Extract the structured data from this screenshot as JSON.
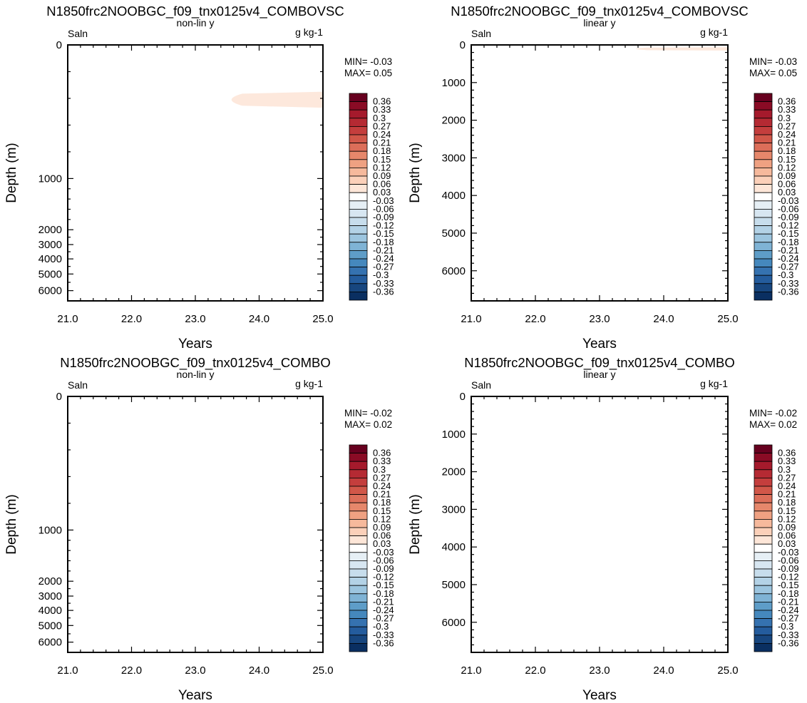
{
  "chart_data": [
    {
      "type": "heatmap",
      "title": "N1850frc2NOOBGC_f09_tnx0125v4_COMBOVSC",
      "left_label": "Saln",
      "center_label": "non-lin y",
      "right_label": "g kg-1",
      "xlabel": "Years",
      "ylabel": "Depth (m)",
      "y_scale": "non-linear",
      "xlim": [
        21.0,
        25.0
      ],
      "ylim": [
        0,
        6500
      ],
      "x_ticks": [
        21.0,
        22.0,
        23.0,
        24.0,
        25.0
      ],
      "x_tick_labels": [
        "21.0",
        "22.0",
        "23.0",
        "24.0",
        "25.0"
      ],
      "y_ticks": [
        0,
        1000,
        2000,
        3000,
        4000,
        5000,
        6000
      ],
      "y_tick_labels": [
        "0",
        "1000",
        "2000",
        "3000",
        "4000",
        "5000",
        "6000"
      ],
      "min_label": "MIN= -0.03",
      "max_label": "MAX=  0.05",
      "shaded_regions": [
        {
          "level_range": [
            0.03,
            0.06
          ],
          "color": "#fde8dc",
          "x_start": 23.4,
          "x_end": 25.0,
          "depth_top": 350,
          "depth_bottom": 470
        }
      ]
    },
    {
      "type": "heatmap",
      "title": "N1850frc2NOOBGC_f09_tnx0125v4_COMBOVSC",
      "left_label": "Saln",
      "center_label": "linear y",
      "right_label": "g kg-1",
      "xlabel": "Years",
      "ylabel": "Depth (m)",
      "y_scale": "linear",
      "xlim": [
        21.0,
        25.0
      ],
      "ylim": [
        0,
        6800
      ],
      "x_ticks": [
        21.0,
        22.0,
        23.0,
        24.0,
        25.0
      ],
      "x_tick_labels": [
        "21.0",
        "22.0",
        "23.0",
        "24.0",
        "25.0"
      ],
      "y_ticks": [
        0,
        1000,
        2000,
        3000,
        4000,
        5000,
        6000
      ],
      "y_tick_labels": [
        "0",
        "1000",
        "2000",
        "3000",
        "4000",
        "5000",
        "6000"
      ],
      "min_label": "MIN= -0.03",
      "max_label": "MAX=  0.05",
      "shaded_regions": [
        {
          "level_range": [
            0.03,
            0.06
          ],
          "color": "#fde8dc",
          "x_start": 23.4,
          "x_end": 25.0,
          "depth_top": 60,
          "depth_bottom": 150
        }
      ]
    },
    {
      "type": "heatmap",
      "title": "N1850frc2NOOBGC_f09_tnx0125v4_COMBO",
      "left_label": "Saln",
      "center_label": "non-lin y",
      "right_label": "g kg-1",
      "xlabel": "Years",
      "ylabel": "Depth (m)",
      "y_scale": "non-linear",
      "xlim": [
        21.0,
        25.0
      ],
      "ylim": [
        0,
        6500
      ],
      "x_ticks": [
        21.0,
        22.0,
        23.0,
        24.0,
        25.0
      ],
      "x_tick_labels": [
        "21.0",
        "22.0",
        "23.0",
        "24.0",
        "25.0"
      ],
      "y_ticks": [
        0,
        1000,
        2000,
        3000,
        4000,
        5000,
        6000
      ],
      "y_tick_labels": [
        "0",
        "1000",
        "2000",
        "3000",
        "4000",
        "5000",
        "6000"
      ],
      "min_label": "MIN= -0.02",
      "max_label": "MAX=  0.02",
      "shaded_regions": []
    },
    {
      "type": "heatmap",
      "title": "N1850frc2NOOBGC_f09_tnx0125v4_COMBO",
      "left_label": "Saln",
      "center_label": "linear y",
      "right_label": "g kg-1",
      "xlabel": "Years",
      "ylabel": "Depth (m)",
      "y_scale": "linear",
      "xlim": [
        21.0,
        25.0
      ],
      "ylim": [
        0,
        6800
      ],
      "x_ticks": [
        21.0,
        22.0,
        23.0,
        24.0,
        25.0
      ],
      "x_tick_labels": [
        "21.0",
        "22.0",
        "23.0",
        "24.0",
        "25.0"
      ],
      "y_ticks": [
        0,
        1000,
        2000,
        3000,
        4000,
        5000,
        6000
      ],
      "y_tick_labels": [
        "0",
        "1000",
        "2000",
        "3000",
        "4000",
        "5000",
        "6000"
      ],
      "min_label": "MIN= -0.02",
      "max_label": "MAX=  0.02",
      "shaded_regions": []
    }
  ],
  "colorbar": {
    "labels": [
      "0.36",
      "0.33",
      "0.3",
      "0.27",
      "0.24",
      "0.21",
      "0.18",
      "0.15",
      "0.12",
      "0.09",
      "0.06",
      "0.03",
      "-0.03",
      "-0.06",
      "-0.09",
      "-0.12",
      "-0.15",
      "-0.18",
      "-0.21",
      "-0.24",
      "-0.27",
      "-0.3",
      "-0.33",
      "-0.36"
    ],
    "colors": [
      "#67001f",
      "#8a0b25",
      "#a51a2c",
      "#b52a33",
      "#c43e3d",
      "#d15749",
      "#dc6e59",
      "#e6876b",
      "#efa182",
      "#f6b99c",
      "#fbd0b9",
      "#fde6d8",
      "#ffffff",
      "#e6eff5",
      "#d7e6f1",
      "#c7ddec",
      "#b3d2e6",
      "#9cc5df",
      "#7fb3d5",
      "#5e9dc8",
      "#4588bd",
      "#3572b0",
      "#245c9d",
      "#17467f",
      "#0a2f61"
    ]
  }
}
